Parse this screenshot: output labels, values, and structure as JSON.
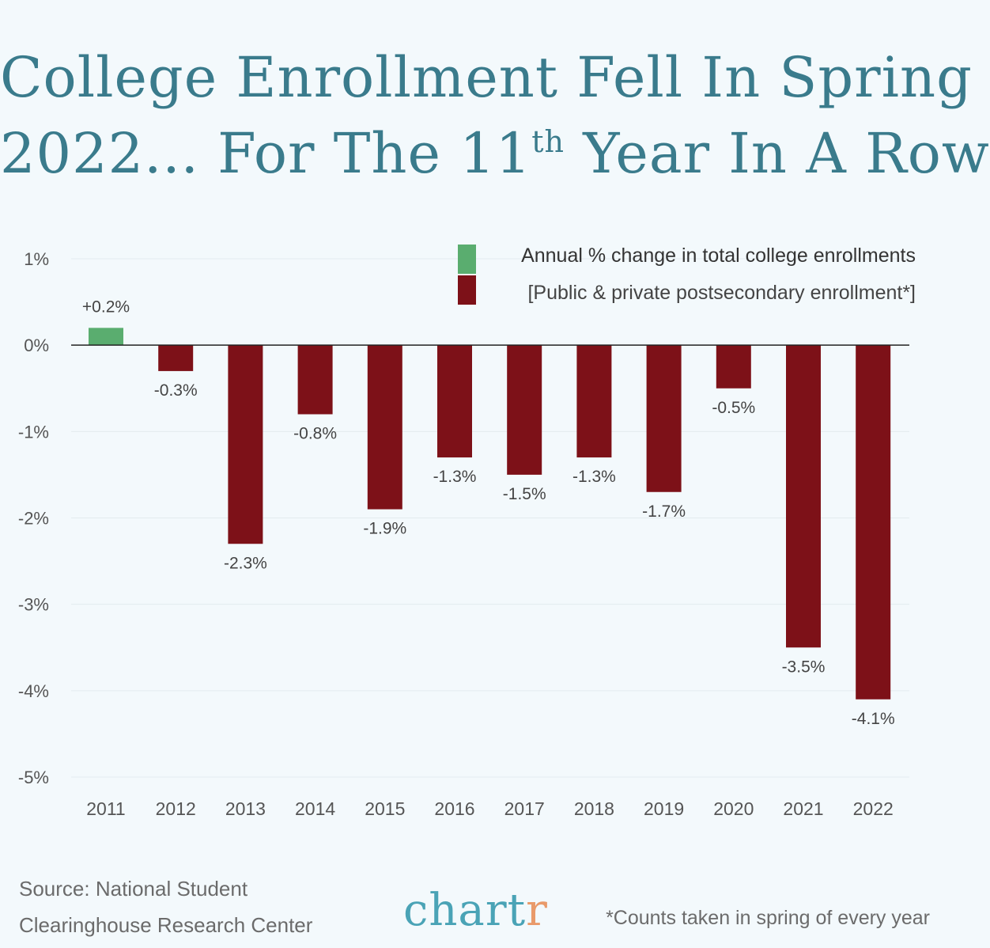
{
  "title": {
    "line1": "College Enrollment Fell In Spring",
    "line2_a": "2022... For The 11",
    "line2_sup": "th",
    "line2_b": " Year In A Row"
  },
  "chart_data": {
    "type": "bar",
    "categories": [
      "2011",
      "2012",
      "2013",
      "2014",
      "2015",
      "2016",
      "2017",
      "2018",
      "2019",
      "2020",
      "2021",
      "2022"
    ],
    "values": [
      0.2,
      -0.3,
      -2.3,
      -0.8,
      -1.9,
      -1.3,
      -1.5,
      -1.3,
      -1.7,
      -0.5,
      -3.5,
      -4.1
    ],
    "data_labels": [
      "+0.2%",
      "-0.3%",
      "-2.3%",
      "-0.8%",
      "-1.9%",
      "-1.3%",
      "-1.5%",
      "-1.3%",
      "-1.7%",
      "-0.5%",
      "-3.5%",
      "-4.1%"
    ],
    "ylim": [
      -5,
      1
    ],
    "yticks": [
      1,
      0,
      -1,
      -2,
      -3,
      -4,
      -5
    ],
    "ytick_labels": [
      "1%",
      "0%",
      "-1%",
      "-2%",
      "-3%",
      "-4%",
      "-5%"
    ],
    "grid": true,
    "legend": {
      "placement": "top-right",
      "entries": [
        {
          "label": "Annual % change in total college enrollments",
          "color": "#5aad6f"
        },
        {
          "label": "[Public & private postsecondary enrollment*]",
          "color": "#7d1118"
        }
      ]
    },
    "colors": {
      "positive": "#5aad6f",
      "negative": "#7d1118"
    }
  },
  "footer": {
    "source_line1": "Source: National Student",
    "source_line2": "Clearinghouse Research Center",
    "logo_main": "chart",
    "logo_r": "r",
    "footnote": "*Counts taken in spring of every year"
  }
}
